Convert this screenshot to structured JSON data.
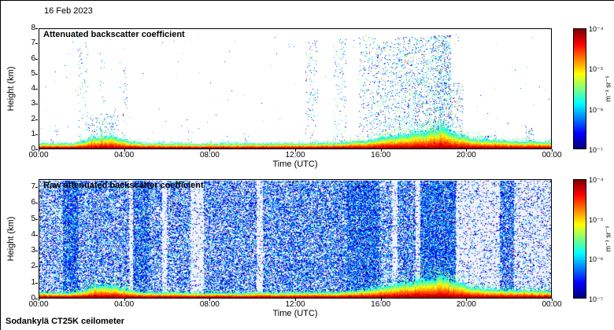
{
  "header": {
    "date": "16 Feb 2023"
  },
  "footer": {
    "instrument": "Sodankylä CT25K ceilometer"
  },
  "chart_data": [
    {
      "type": "heatmap",
      "title": "Attenuated backscatter coefficient",
      "xlabel": "Time (UTC)",
      "ylabel": "Height (km)",
      "x_ticks": [
        "00:00",
        "04:00",
        "08:00",
        "12:00",
        "16:00",
        "20:00",
        "00:00"
      ],
      "y_ticks": [
        8,
        7,
        6,
        5,
        4,
        3,
        2,
        1,
        0
      ],
      "xlim_hours": [
        0,
        24
      ],
      "ylim": [
        0,
        8
      ],
      "colorbar": {
        "scale": "log",
        "range_min": "1e-7",
        "range_max": "1e-4",
        "ticks": [
          "10⁻⁴",
          "10⁻⁵",
          "10⁻⁶",
          "10⁻⁷"
        ],
        "label": "m⁻¹ sr⁻¹"
      },
      "description": "Mostly clear (white) with sparse blue/cyan/green cloud and precipitation speckle; strong red boundary-layer echo below ~0.3-1.4 km all day; low echo cluster ~02-04 UTC below 2.3 km; scattered tall columns 12-16 UTC up to 7.5 km; dense cloud/virga speckle 17-19:30 UTC; shallow echoes near 21 and 23 UTC",
      "render": {
        "mode": "sparse",
        "seed": 7,
        "background": "#ffffff",
        "base_density": 0.0015,
        "max_height_km": 7.65,
        "features": [
          [
            0.02,
            0.04,
            1.5,
            0.04
          ],
          [
            0.075,
            0.095,
            7.6,
            0.05
          ],
          [
            0.095,
            0.155,
            2.3,
            0.09
          ],
          [
            0.118,
            0.128,
            6.5,
            0.04
          ],
          [
            0.162,
            0.172,
            5.5,
            0.05
          ],
          [
            0.29,
            0.3,
            1.2,
            0.05
          ],
          [
            0.4,
            0.41,
            1.0,
            0.04
          ],
          [
            0.52,
            0.545,
            7.3,
            0.05
          ],
          [
            0.575,
            0.6,
            7.5,
            0.06
          ],
          [
            0.625,
            0.66,
            7.6,
            0.09
          ],
          [
            0.66,
            0.7,
            7.2,
            0.12
          ],
          [
            0.7,
            0.77,
            7.5,
            0.16
          ],
          [
            0.77,
            0.805,
            7.6,
            0.28
          ],
          [
            0.805,
            0.83,
            4.5,
            0.12
          ],
          [
            0.868,
            0.895,
            0.9,
            0.2
          ],
          [
            0.952,
            0.972,
            1.4,
            0.15
          ]
        ],
        "surface_profile": [
          [
            0,
            0.32
          ],
          [
            0.06,
            0.3
          ],
          [
            0.09,
            0.5
          ],
          [
            0.11,
            0.75
          ],
          [
            0.14,
            0.8
          ],
          [
            0.17,
            0.5
          ],
          [
            0.2,
            0.35
          ],
          [
            0.3,
            0.28
          ],
          [
            0.4,
            0.3
          ],
          [
            0.5,
            0.32
          ],
          [
            0.58,
            0.35
          ],
          [
            0.64,
            0.5
          ],
          [
            0.68,
            0.75
          ],
          [
            0.72,
            0.95
          ],
          [
            0.76,
            1.15
          ],
          [
            0.79,
            1.35
          ],
          [
            0.81,
            1.0
          ],
          [
            0.84,
            0.7
          ],
          [
            0.87,
            0.55
          ],
          [
            0.9,
            0.5
          ],
          [
            0.94,
            0.45
          ],
          [
            1,
            0.42
          ]
        ],
        "surface_fringe_density": 0.22
      }
    },
    {
      "type": "heatmap",
      "title": "Raw attenuated backscatter coefficient",
      "xlabel": "Time (UTC)",
      "ylabel": "Height (km)",
      "x_ticks": [
        "00:00",
        "04:00",
        "08:00",
        "12:00",
        "16:00",
        "20:00",
        "00:00"
      ],
      "y_ticks": [
        7,
        6,
        5,
        4,
        3,
        2,
        1,
        0
      ],
      "xlim_hours": [
        0,
        24
      ],
      "ylim": [
        0,
        7.5
      ],
      "colorbar": {
        "scale": "log",
        "range_min": "1e-7",
        "range_max": "1e-4",
        "ticks": [
          "10⁻⁴",
          "10⁻⁵",
          "10⁻⁶",
          "10⁻⁷"
        ],
        "label": "m⁻¹ sr⁻¹"
      },
      "description": "Dense blue instrument-noise speckle at all heights; lighter low-noise vertical stripes near 04:15, 05:50, 07:05-07:45, 10:15, 16:35 and 17:40 UTC and a wide light band ~19:40-21:35 and after ~22:15; denser noise 01-02, 14:30-16, 18-19:30 and 21:40-22:15 UTC; same strong red surface echo as top panel",
      "render": {
        "mode": "dense",
        "seed": 11,
        "background": "#f3f2fb",
        "base_density": 0.5,
        "max_height_km": 7.45,
        "density_profile": [
          [
            0,
            0.045,
            0.4
          ],
          [
            0.045,
            0.075,
            0.8
          ],
          [
            0.075,
            0.175,
            0.5
          ],
          [
            0.175,
            0.183,
            0.07
          ],
          [
            0.183,
            0.215,
            0.72
          ],
          [
            0.215,
            0.24,
            0.5
          ],
          [
            0.24,
            0.249,
            0.07
          ],
          [
            0.249,
            0.295,
            0.5
          ],
          [
            0.295,
            0.322,
            0.1
          ],
          [
            0.322,
            0.425,
            0.52
          ],
          [
            0.425,
            0.437,
            0.1
          ],
          [
            0.437,
            0.6,
            0.55
          ],
          [
            0.6,
            0.665,
            0.78
          ],
          [
            0.665,
            0.69,
            0.45
          ],
          [
            0.69,
            0.7,
            0.1
          ],
          [
            0.7,
            0.735,
            0.6
          ],
          [
            0.735,
            0.745,
            0.1
          ],
          [
            0.745,
            0.815,
            0.8
          ],
          [
            0.815,
            0.9,
            0.13
          ],
          [
            0.9,
            0.928,
            0.65
          ],
          [
            0.928,
            1,
            0.18
          ]
        ],
        "surface_profile": [
          [
            0,
            0.32
          ],
          [
            0.06,
            0.3
          ],
          [
            0.09,
            0.5
          ],
          [
            0.11,
            0.75
          ],
          [
            0.14,
            0.8
          ],
          [
            0.17,
            0.5
          ],
          [
            0.2,
            0.35
          ],
          [
            0.3,
            0.28
          ],
          [
            0.4,
            0.3
          ],
          [
            0.5,
            0.32
          ],
          [
            0.58,
            0.35
          ],
          [
            0.64,
            0.5
          ],
          [
            0.68,
            0.75
          ],
          [
            0.72,
            0.95
          ],
          [
            0.76,
            1.15
          ],
          [
            0.79,
            1.35
          ],
          [
            0.81,
            1.0
          ],
          [
            0.84,
            0.7
          ],
          [
            0.87,
            0.55
          ],
          [
            0.9,
            0.5
          ],
          [
            0.94,
            0.45
          ],
          [
            1,
            0.42
          ]
        ],
        "surface_fringe_density": 0.3
      }
    }
  ]
}
